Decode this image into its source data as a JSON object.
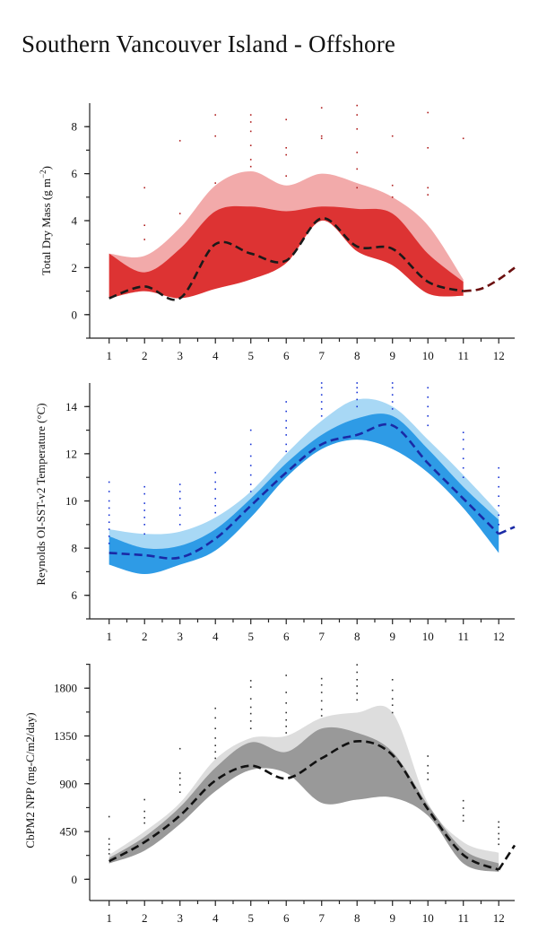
{
  "title": "Southern Vancouver Island - Offshore",
  "chart_data": [
    {
      "type": "area",
      "ylabel_parts": [
        "Total Dry Mass (g m",
        "−2",
        ")"
      ],
      "xlim": [
        0.45,
        12.45
      ],
      "ylim": [
        -1.0,
        9.0
      ],
      "x_ticks": [
        1,
        2,
        3,
        4,
        5,
        6,
        7,
        8,
        9,
        10,
        11,
        12
      ],
      "y_ticks": [
        0,
        2,
        4,
        6,
        8
      ],
      "colors": {
        "outer_band": "#f2aaaa",
        "inner_band": "#dd3333",
        "mean_line": "#1a1a1a",
        "extension_line": "#6b0f0f",
        "points": "#b02020"
      },
      "outer_band": {
        "x": [
          1,
          2,
          3,
          4,
          5,
          6,
          7,
          8,
          9,
          10,
          11
        ],
        "upper": [
          2.6,
          2.5,
          3.7,
          5.5,
          6.1,
          5.5,
          6.0,
          5.6,
          5.0,
          3.8,
          1.5
        ],
        "lower": [
          0.7,
          1.0,
          0.7,
          1.1,
          1.5,
          2.2,
          4.0,
          2.7,
          2.1,
          0.9,
          0.8
        ]
      },
      "inner_band": {
        "x": [
          1,
          2,
          3,
          4,
          5,
          6,
          7,
          8,
          9,
          10,
          11
        ],
        "upper": [
          2.6,
          1.8,
          2.8,
          4.4,
          4.6,
          4.4,
          4.6,
          4.5,
          4.3,
          2.6,
          1.4
        ],
        "lower": [
          0.7,
          1.0,
          0.7,
          1.1,
          1.5,
          2.2,
          4.0,
          2.7,
          2.1,
          0.9,
          0.8
        ]
      },
      "mean": {
        "x": [
          1,
          2,
          3,
          4,
          5,
          6,
          7,
          8,
          9,
          10,
          11
        ],
        "y": [
          0.7,
          1.2,
          0.7,
          3.0,
          2.6,
          2.3,
          4.1,
          2.9,
          2.8,
          1.4,
          1.0
        ]
      },
      "extension": {
        "x": [
          11,
          11.5,
          12,
          12.45
        ],
        "y": [
          1.0,
          1.1,
          1.5,
          2.0
        ]
      },
      "points": {
        "x": [
          2,
          2,
          2,
          3,
          3,
          4,
          4,
          4,
          5,
          5,
          5,
          5,
          5,
          5,
          6,
          6,
          6,
          6,
          7,
          7,
          7,
          8,
          8,
          8,
          8,
          8,
          8,
          9,
          9,
          9,
          10,
          10,
          10,
          10,
          11
        ],
        "y": [
          5.4,
          3.8,
          3.2,
          7.4,
          4.3,
          8.5,
          7.6,
          5.6,
          8.5,
          8.2,
          7.8,
          7.2,
          6.6,
          6.3,
          8.3,
          7.1,
          6.8,
          5.9,
          8.8,
          7.6,
          7.5,
          8.9,
          8.5,
          7.9,
          6.9,
          6.2,
          5.4,
          7.6,
          5.5,
          5.0,
          8.6,
          7.1,
          5.4,
          5.1,
          7.5
        ]
      }
    },
    {
      "type": "area",
      "ylabel_parts": [
        "Reynolds OI-SST-v2 Temperature (°C)"
      ],
      "xlim": [
        0.45,
        12.45
      ],
      "ylim": [
        5.0,
        15.0
      ],
      "x_ticks": [
        1,
        2,
        3,
        4,
        5,
        6,
        7,
        8,
        9,
        10,
        11,
        12
      ],
      "y_ticks": [
        6,
        8,
        10,
        12,
        14
      ],
      "colors": {
        "outer_band": "#a8d8f5",
        "inner_band": "#2e9be6",
        "mean_line": "#1a2aa6",
        "extension_line": "#1a2aa6",
        "points": "#1a35d6"
      },
      "outer_band": {
        "x": [
          1,
          2,
          3,
          4,
          5,
          6,
          7,
          8,
          9,
          10,
          11,
          12
        ],
        "upper": [
          8.8,
          8.6,
          8.7,
          9.3,
          10.4,
          12.0,
          13.4,
          14.3,
          14.0,
          12.6,
          11.1,
          9.5
        ],
        "lower": [
          7.3,
          6.9,
          7.3,
          7.9,
          9.3,
          11.0,
          12.2,
          12.6,
          12.2,
          11.2,
          9.7,
          7.8
        ]
      },
      "inner_band": {
        "x": [
          1,
          2,
          3,
          4,
          5,
          6,
          7,
          8,
          9,
          10,
          11,
          12
        ],
        "upper": [
          8.5,
          8.0,
          8.1,
          8.8,
          10.1,
          11.6,
          12.8,
          13.5,
          13.6,
          12.2,
          10.6,
          9.2
        ],
        "lower": [
          7.3,
          6.9,
          7.3,
          7.9,
          9.3,
          11.0,
          12.2,
          12.6,
          12.2,
          11.2,
          9.7,
          7.8
        ]
      },
      "mean": {
        "x": [
          1,
          2,
          3,
          4,
          5,
          6,
          7,
          8,
          9,
          10,
          11,
          12
        ],
        "y": [
          7.8,
          7.7,
          7.6,
          8.4,
          9.8,
          11.2,
          12.4,
          12.8,
          13.2,
          11.6,
          10.1,
          8.6
        ]
      },
      "extension": {
        "x": [
          12,
          12.45
        ],
        "y": [
          8.6,
          8.9
        ]
      },
      "points": {
        "x": [
          1,
          1,
          1,
          1,
          1,
          1,
          1,
          1,
          1,
          2,
          2,
          2,
          2,
          2,
          2,
          2,
          3,
          3,
          3,
          3,
          3,
          3,
          4,
          4,
          4,
          4,
          4,
          4,
          5,
          5,
          5,
          5,
          5,
          5,
          5,
          6,
          6,
          6,
          6,
          6,
          6,
          6,
          7,
          7,
          7,
          7,
          7,
          7,
          8,
          8,
          8,
          8,
          8,
          9,
          9,
          9,
          9,
          9,
          10,
          10,
          10,
          10,
          10,
          11,
          11,
          11,
          11,
          11,
          11,
          12,
          12,
          12,
          12,
          12,
          12,
          12
        ],
        "y": [
          10.8,
          10.4,
          10.0,
          9.7,
          9.4,
          9.1,
          8.8,
          8.5,
          8.2,
          10.6,
          10.3,
          9.9,
          9.6,
          9.3,
          9.0,
          8.6,
          10.7,
          10.4,
          10.1,
          9.7,
          9.4,
          9.0,
          11.2,
          10.8,
          10.5,
          10.1,
          9.8,
          9.5,
          13.0,
          12.4,
          11.9,
          11.5,
          11.1,
          10.7,
          10.4,
          14.2,
          13.8,
          13.4,
          13.1,
          12.8,
          12.4,
          12.1,
          15.0,
          14.8,
          14.5,
          14.2,
          13.9,
          13.6,
          15.0,
          14.8,
          14.6,
          14.3,
          14.0,
          15.0,
          14.8,
          14.5,
          14.2,
          13.9,
          14.8,
          14.4,
          14.0,
          13.6,
          13.2,
          12.9,
          12.6,
          12.2,
          11.8,
          11.4,
          11.0,
          11.4,
          11.0,
          10.6,
          10.2,
          9.8,
          9.4,
          9.0
        ]
      }
    },
    {
      "type": "area",
      "ylabel_parts": [
        "CbPM2 NPP (mg-C/m2/day)"
      ],
      "xlim": [
        0.45,
        12.45
      ],
      "ylim": [
        -200,
        2030
      ],
      "x_ticks": [
        1,
        2,
        3,
        4,
        5,
        6,
        7,
        8,
        9,
        10,
        11,
        12
      ],
      "y_ticks": [
        0,
        450,
        900,
        1350,
        1800
      ],
      "colors": {
        "outer_band": "#dddddd",
        "inner_band": "#999999",
        "mean_line": "#111111",
        "extension_line": "#111111",
        "points": "#333333"
      },
      "outer_band": {
        "x": [
          1,
          2,
          3,
          4,
          5,
          6,
          7,
          8,
          9,
          10,
          11,
          12
        ],
        "upper": [
          230,
          450,
          720,
          1130,
          1330,
          1350,
          1520,
          1570,
          1570,
          720,
          350,
          250
        ],
        "lower": [
          150,
          270,
          520,
          830,
          1030,
          1000,
          720,
          750,
          770,
          600,
          150,
          70
        ]
      },
      "inner_band": {
        "x": [
          1,
          2,
          3,
          4,
          5,
          6,
          7,
          8,
          9,
          10,
          11,
          12
        ],
        "upper": [
          200,
          400,
          680,
          1050,
          1290,
          1200,
          1420,
          1380,
          1200,
          700,
          280,
          150
        ],
        "lower": [
          150,
          270,
          520,
          830,
          1030,
          1000,
          720,
          750,
          770,
          600,
          150,
          70
        ]
      },
      "mean": {
        "x": [
          1,
          2,
          3,
          4,
          5,
          6,
          7,
          8,
          9,
          10,
          11,
          12
        ],
        "y": [
          170,
          350,
          600,
          930,
          1070,
          950,
          1140,
          1300,
          1170,
          660,
          230,
          90
        ]
      },
      "extension": {
        "x": [
          12,
          12.45
        ],
        "y": [
          90,
          320
        ]
      },
      "points": {
        "x": [
          1,
          1,
          1,
          1,
          1,
          2,
          2,
          2,
          2,
          3,
          3,
          3,
          3,
          3,
          4,
          4,
          4,
          4,
          4,
          4,
          4,
          5,
          5,
          5,
          5,
          5,
          5,
          5,
          6,
          6,
          6,
          6,
          6,
          6,
          6,
          7,
          7,
          7,
          7,
          7,
          7,
          8,
          8,
          8,
          8,
          8,
          8,
          9,
          9,
          9,
          9,
          9,
          10,
          10,
          10,
          10,
          11,
          11,
          11,
          11,
          12,
          12,
          12,
          12,
          12
        ],
        "y": [
          590,
          380,
          330,
          280,
          240,
          750,
          640,
          580,
          530,
          1230,
          1000,
          950,
          890,
          820,
          1610,
          1520,
          1420,
          1330,
          1260,
          1200,
          1140,
          1870,
          1810,
          1700,
          1620,
          1560,
          1490,
          1420,
          1920,
          1760,
          1660,
          1570,
          1500,
          1440,
          1380,
          1890,
          1830,
          1760,
          1680,
          1600,
          1540,
          2020,
          1950,
          1880,
          1820,
          1750,
          1690,
          1880,
          1780,
          1700,
          1640,
          1570,
          1160,
          1070,
          1000,
          940,
          740,
          670,
          600,
          550,
          540,
          490,
          430,
          380,
          330
        ]
      }
    }
  ]
}
